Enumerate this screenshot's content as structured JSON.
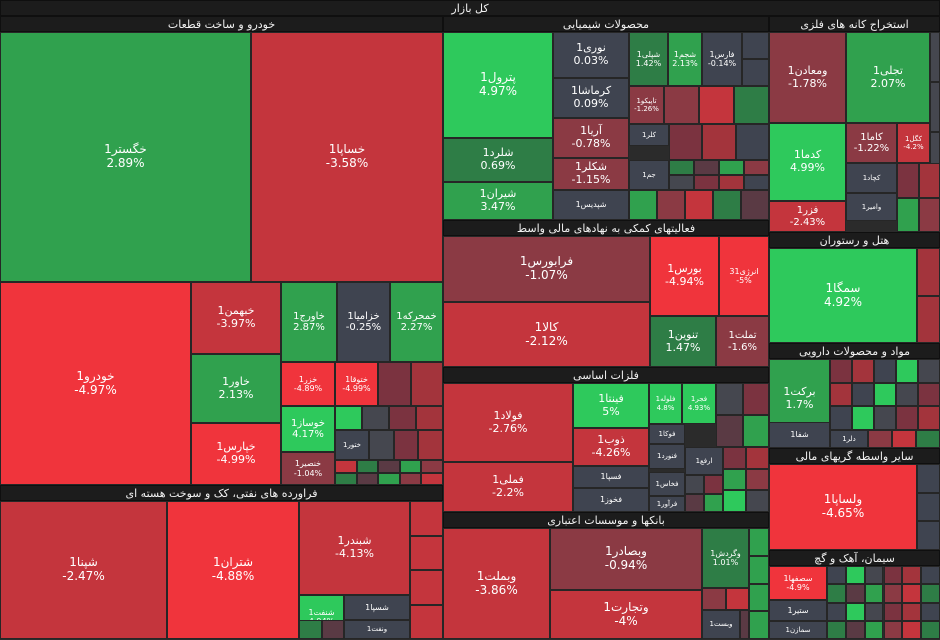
{
  "title": "کل بازار",
  "colors": {
    "strong_up": "#2ec95c",
    "up": "#30a14e",
    "mild_up": "#2e7d46",
    "neutral": "#3f4450",
    "mild_down": "#8b3a44",
    "down": "#c4353d",
    "strong_down": "#f0343c"
  },
  "chart_data": {
    "type": "treemap",
    "title": "کل بازار",
    "sectors": [
      {
        "name": "خودرو و ساخت قطعات",
        "stocks": [
          {
            "symbol": "خگستر1",
            "change": "2.89%"
          },
          {
            "symbol": "خساپا1",
            "change": "-3.58%"
          },
          {
            "symbol": "خودرو1",
            "change": "-4.97%"
          },
          {
            "symbol": "خبهمن1",
            "change": "-3.97%"
          },
          {
            "symbol": "خاور1",
            "change": "2.13%"
          },
          {
            "symbol": "خپارس1",
            "change": "-4.99%"
          },
          {
            "symbol": "خاورج1",
            "change": "2.87%"
          },
          {
            "symbol": "خزامیا1",
            "change": "-0.25%"
          },
          {
            "symbol": "خمحرکه1",
            "change": "2.27%"
          },
          {
            "symbol": "خزر1",
            "change": "-4.89%"
          },
          {
            "symbol": "ختوقا1",
            "change": "-4.99%"
          },
          {
            "symbol": "خوساز1",
            "change": "4.17%"
          },
          {
            "symbol": "خنصیر1",
            "change": "-1.04%"
          },
          {
            "symbol": "ختور1",
            "change": ""
          }
        ]
      },
      {
        "name": "فراورده های نفتی، کک و سوخت هسته ای",
        "stocks": [
          {
            "symbol": "شپنا1",
            "change": "-2.47%"
          },
          {
            "symbol": "شتران1",
            "change": "-4.88%"
          },
          {
            "symbol": "شبندر1",
            "change": "-4.13%"
          },
          {
            "symbol": "شسپا1",
            "change": ""
          },
          {
            "symbol": "شنفت1",
            "change": "4.94%"
          },
          {
            "symbol": "ونفت1",
            "change": ""
          }
        ]
      },
      {
        "name": "محصولات شیمیایی",
        "stocks": [
          {
            "symbol": "پترول1",
            "change": "4.97%"
          },
          {
            "symbol": "نوری1",
            "change": "0.03%"
          },
          {
            "symbol": "کرماشا1",
            "change": "0.09%"
          },
          {
            "symbol": "شپلی1",
            "change": "1.42%"
          },
          {
            "symbol": "شجم1",
            "change": "2.13%"
          },
          {
            "symbol": "فارس1",
            "change": "-0.14%"
          },
          {
            "symbol": "شلرد1",
            "change": "0.69%"
          },
          {
            "symbol": "آریا1",
            "change": "-0.78%"
          },
          {
            "symbol": "تاپیکو1",
            "change": "-1.26%"
          },
          {
            "symbol": "شکلر1",
            "change": "-1.15%"
          },
          {
            "symbol": "کلر1",
            "change": ""
          },
          {
            "symbol": "جم1",
            "change": ""
          },
          {
            "symbol": "شیران1",
            "change": "3.47%"
          },
          {
            "symbol": "شپدیس1",
            "change": ""
          }
        ]
      },
      {
        "name": "استخراج کانه های فلزی",
        "stocks": [
          {
            "symbol": "ومعادن1",
            "change": "-1.78%"
          },
          {
            "symbol": "تجلی1",
            "change": "2.07%"
          },
          {
            "symbol": "کدما1",
            "change": "4.99%"
          },
          {
            "symbol": "کاما1",
            "change": "-1.22%"
          },
          {
            "symbol": "کگل1",
            "change": "-4.2%"
          },
          {
            "symbol": "کچاد1",
            "change": ""
          },
          {
            "symbol": "وامیر1",
            "change": ""
          },
          {
            "symbol": "فزر1",
            "change": "-2.43%"
          }
        ]
      },
      {
        "name": "فعالیتهای کمکی به نهادهای مالی واسط",
        "stocks": [
          {
            "symbol": "فرابورس1",
            "change": "-1.07%"
          },
          {
            "symbol": "بورس1",
            "change": "-4.94%"
          },
          {
            "symbol": "انرژی31",
            "change": "-5%"
          },
          {
            "symbol": "کالا1",
            "change": "-2.12%"
          },
          {
            "symbol": "تنوین1",
            "change": "1.47%"
          },
          {
            "symbol": "تملت1",
            "change": "-1.6%"
          }
        ]
      },
      {
        "name": "هتل و رستوران",
        "stocks": [
          {
            "symbol": "سمگا1",
            "change": "4.92%"
          }
        ]
      },
      {
        "name": "فلزات اساسی",
        "stocks": [
          {
            "symbol": "فولاد1",
            "change": "-2.76%"
          },
          {
            "symbol": "فینتا1",
            "change": "5%"
          },
          {
            "symbol": "فلوله1",
            "change": "4.8%"
          },
          {
            "symbol": "فجر1",
            "change": "4.93%"
          },
          {
            "symbol": "فوکا1",
            "change": ""
          },
          {
            "symbol": "ذوب1",
            "change": "-4.26%"
          },
          {
            "symbol": "فنورد1",
            "change": ""
          },
          {
            "symbol": "ارفع1",
            "change": ""
          },
          {
            "symbol": "فملی1",
            "change": "-2.2%"
          },
          {
            "symbol": "فسپا1",
            "change": ""
          },
          {
            "symbol": "فخاس1",
            "change": ""
          },
          {
            "symbol": "فخوز1",
            "change": ""
          },
          {
            "symbol": "فرآور1",
            "change": ""
          }
        ]
      },
      {
        "name": "مواد و محصولات دارویی",
        "stocks": [
          {
            "symbol": "برکت1",
            "change": "1.7%"
          },
          {
            "symbol": "شفا1",
            "change": ""
          },
          {
            "symbol": "دلر1",
            "change": ""
          }
        ]
      },
      {
        "name": "سایر واسطه گریهای مالی",
        "stocks": [
          {
            "symbol": "ولساپا1",
            "change": "-4.65%"
          }
        ]
      },
      {
        "name": "بانکها و موسسات اعتباری",
        "stocks": [
          {
            "symbol": "وبملت1",
            "change": "-3.86%"
          },
          {
            "symbol": "وبصادر1",
            "change": "-0.94%"
          },
          {
            "symbol": "وگردش1",
            "change": "1.01%"
          },
          {
            "symbol": "وتجارت1",
            "change": "-4%"
          },
          {
            "symbol": "وبست1",
            "change": ""
          }
        ]
      },
      {
        "name": "سیمان، آهک و گچ",
        "stocks": [
          {
            "symbol": "سصفها1",
            "change": "-4.9%"
          },
          {
            "symbol": "ستیر1",
            "change": ""
          },
          {
            "symbol": "سمازن1",
            "change": ""
          }
        ]
      }
    ]
  }
}
